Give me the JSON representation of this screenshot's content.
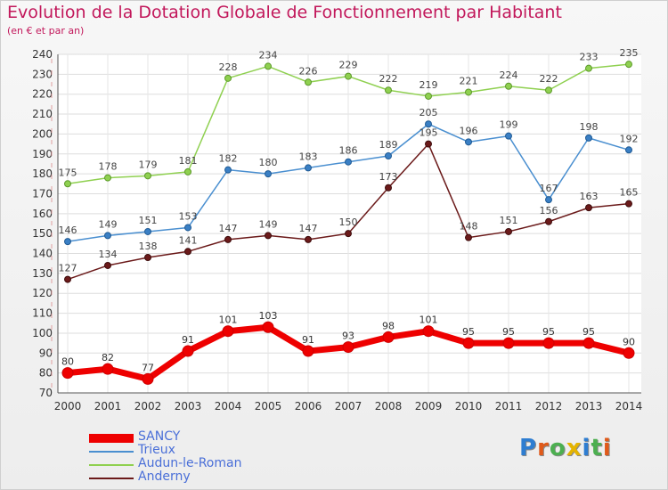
{
  "title": "Evolution de la Dotation Globale de Fonctionnement par Habitant",
  "subtitle": "(en € et par an)",
  "logo": {
    "text": "Proxiti",
    "letters": [
      "P",
      "r",
      "o",
      "x",
      "i",
      "t",
      "i"
    ],
    "colors": [
      "#2e7dd1",
      "#e05a1a",
      "#4caf50",
      "#e5b400",
      "#2e7dd1",
      "#4caf50",
      "#e05a1a"
    ]
  },
  "chart_data": {
    "type": "line",
    "title": "Evolution de la Dotation Globale de Fonctionnement par Habitant",
    "subtitle": "(en € et par an)",
    "xlabel": "",
    "ylabel": "",
    "ylim": [
      70,
      240
    ],
    "yticks": [
      70,
      80,
      90,
      100,
      110,
      120,
      130,
      140,
      150,
      160,
      170,
      180,
      190,
      200,
      210,
      220,
      230,
      240
    ],
    "categories": [
      "2000",
      "2001",
      "2002",
      "2003",
      "2004",
      "2005",
      "2006",
      "2007",
      "2008",
      "2009",
      "2010",
      "2011",
      "2012",
      "2013",
      "2014"
    ],
    "grid": true,
    "legend": "bottom-left",
    "series": [
      {
        "name": "SANCY",
        "color": "#ee0000",
        "values": [
          80,
          82,
          77,
          91,
          101,
          103,
          91,
          93,
          98,
          101,
          95,
          95,
          95,
          95,
          90
        ]
      },
      {
        "name": "Trieux",
        "color": "#4a8fd0",
        "values": [
          146,
          149,
          151,
          153,
          182,
          180,
          183,
          186,
          189,
          205,
          196,
          199,
          167,
          198,
          192
        ]
      },
      {
        "name": "Audun-le-Roman",
        "color": "#8fd050",
        "values": [
          175,
          178,
          179,
          181,
          228,
          234,
          226,
          229,
          222,
          219,
          221,
          224,
          222,
          233,
          235
        ]
      },
      {
        "name": "Anderny",
        "color": "#6b1a1a",
        "values": [
          127,
          134,
          138,
          141,
          147,
          149,
          147,
          150,
          173,
          195,
          148,
          151,
          156,
          163,
          165
        ]
      }
    ]
  }
}
